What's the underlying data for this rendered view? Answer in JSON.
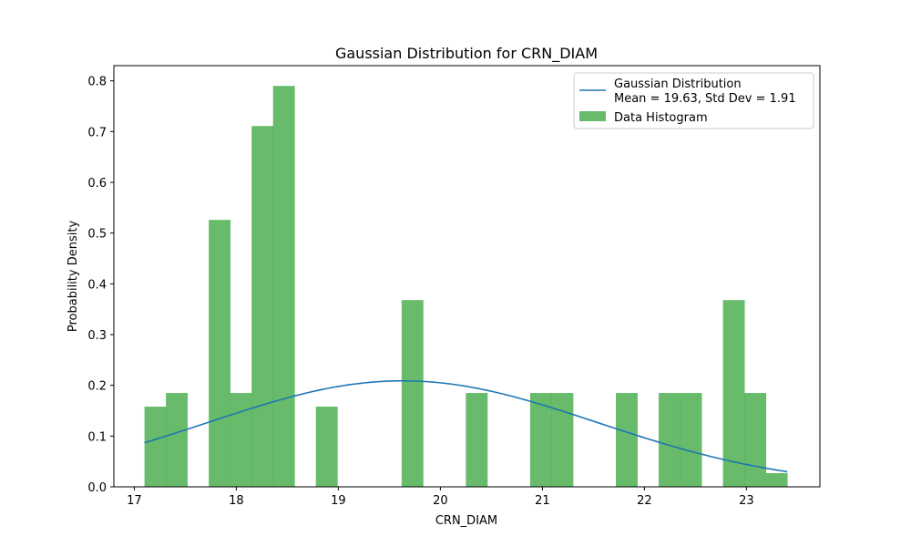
{
  "chart_data": {
    "type": "bar",
    "title": "Gaussian Distribution for CRN_DIAM",
    "xlabel": "CRN_DIAM",
    "ylabel": "Probability Density",
    "xlim": [
      16.8,
      23.72
    ],
    "ylim": [
      0,
      0.83
    ],
    "xticks": [
      "17",
      "18",
      "19",
      "20",
      "21",
      "22",
      "23"
    ],
    "yticks": [
      "0.0",
      "0.1",
      "0.2",
      "0.3",
      "0.4",
      "0.5",
      "0.6",
      "0.7",
      "0.8"
    ],
    "grid": false,
    "legend_position": "top-right",
    "series": [
      {
        "name": "Data Histogram",
        "kind": "histogram",
        "color": "#4caf50",
        "bin_width": 0.21,
        "bins": [
          {
            "x0": 17.1,
            "value": 0.158
          },
          {
            "x0": 17.31,
            "value": 0.185
          },
          {
            "x0": 17.52,
            "value": 0.0
          },
          {
            "x0": 17.73,
            "value": 0.526
          },
          {
            "x0": 17.94,
            "value": 0.185
          },
          {
            "x0": 18.15,
            "value": 0.711
          },
          {
            "x0": 18.36,
            "value": 0.79
          },
          {
            "x0": 18.57,
            "value": 0.0
          },
          {
            "x0": 18.78,
            "value": 0.158
          },
          {
            "x0": 18.99,
            "value": 0.0
          },
          {
            "x0": 19.2,
            "value": 0.0
          },
          {
            "x0": 19.41,
            "value": 0.0
          },
          {
            "x0": 19.62,
            "value": 0.368
          },
          {
            "x0": 19.83,
            "value": 0.0
          },
          {
            "x0": 20.04,
            "value": 0.0
          },
          {
            "x0": 20.25,
            "value": 0.185
          },
          {
            "x0": 20.46,
            "value": 0.0
          },
          {
            "x0": 20.67,
            "value": 0.0
          },
          {
            "x0": 20.88,
            "value": 0.185
          },
          {
            "x0": 21.09,
            "value": 0.185
          },
          {
            "x0": 21.3,
            "value": 0.0
          },
          {
            "x0": 21.51,
            "value": 0.0
          },
          {
            "x0": 21.72,
            "value": 0.185
          },
          {
            "x0": 21.93,
            "value": 0.0
          },
          {
            "x0": 22.14,
            "value": 0.185
          },
          {
            "x0": 22.35,
            "value": 0.185
          },
          {
            "x0": 22.56,
            "value": 0.0
          },
          {
            "x0": 22.77,
            "value": 0.368
          },
          {
            "x0": 22.98,
            "value": 0.185
          },
          {
            "x0": 23.19,
            "value": 0.027
          }
        ]
      },
      {
        "name": "Gaussian Distribution\nMean = 19.63, Std Dev = 1.91",
        "kind": "line",
        "color": "#1f77b4",
        "mean": 19.63,
        "std": 1.91,
        "x_range": [
          17.1,
          23.4
        ]
      }
    ],
    "legend": {
      "line_label_1": "Gaussian Distribution",
      "line_label_2": "Mean = 19.63, Std Dev = 1.91",
      "hist_label": "Data Histogram"
    }
  }
}
